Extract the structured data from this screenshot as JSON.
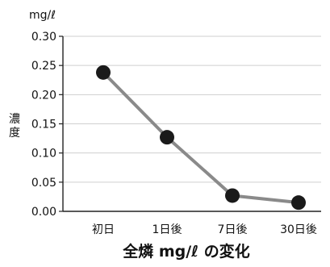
{
  "chart_data": {
    "type": "line",
    "title": "全燐 mg/ℓ の変化",
    "unit": "mg/ℓ",
    "ylabel": "濃度",
    "xlabel": "",
    "categories": [
      "初日",
      "1日後",
      "7日後",
      "30日後"
    ],
    "series": [
      {
        "values": [
          0.238,
          0.127,
          0.027,
          0.015
        ]
      }
    ],
    "ylim": [
      0,
      0.3
    ],
    "yticks": [
      0.0,
      0.05,
      0.1,
      0.15,
      0.2,
      0.25,
      0.3
    ],
    "ytick_labels": [
      "0.00",
      "0.05",
      "0.10",
      "0.15",
      "0.20",
      "0.25",
      "0.30"
    ],
    "grid": true,
    "legend": "none",
    "colors": {
      "line": "#8a8a8a",
      "marker": "#1a1a1a",
      "grid": "#cfcfcf",
      "axis": "#222222"
    }
  }
}
